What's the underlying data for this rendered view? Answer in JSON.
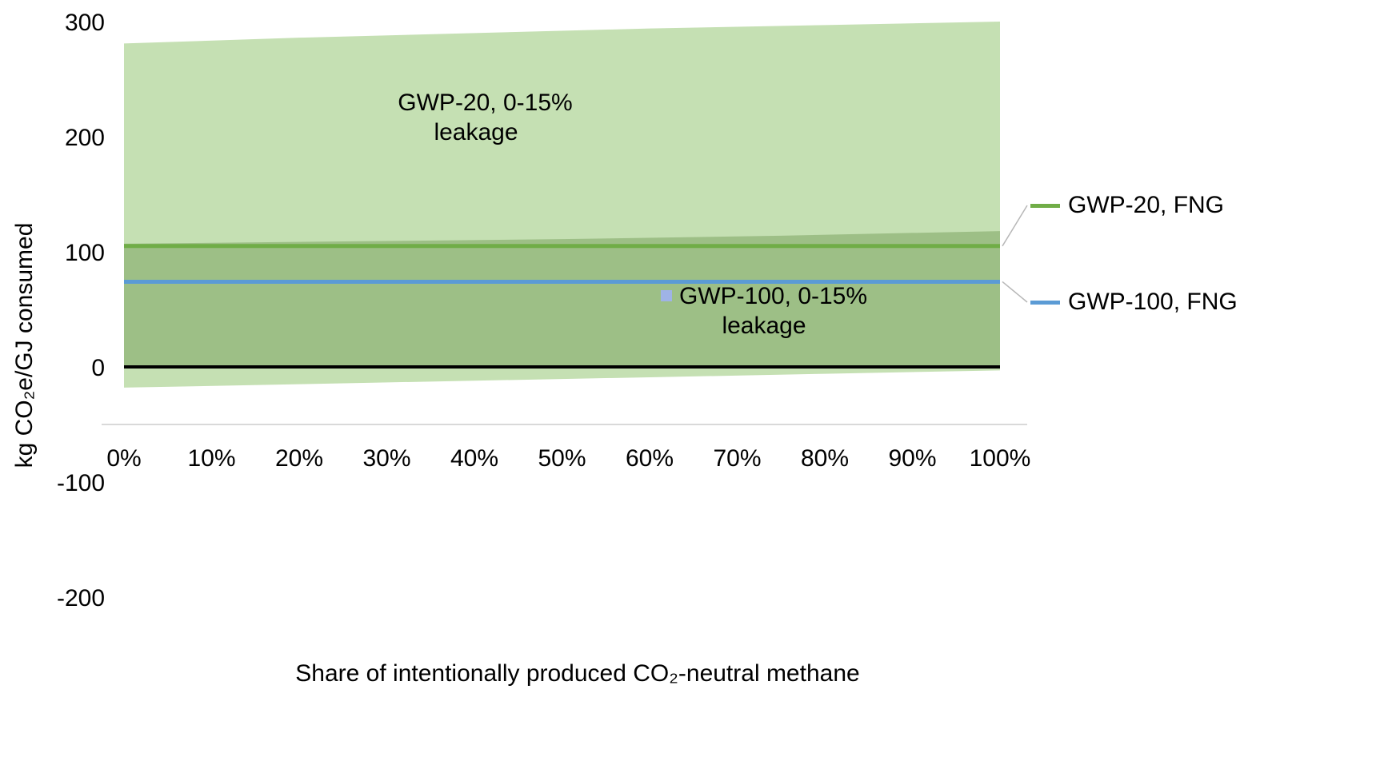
{
  "chart_data": {
    "type": "area",
    "title": "",
    "xlabel": "Share of intentionally produced CO₂-neutral methane",
    "ylabel": "kg CO₂e/GJ consumed",
    "ylim": [
      -200,
      300
    ],
    "xlim": [
      0,
      100
    ],
    "grid": "off",
    "legend_position": "right",
    "x_ticks": [
      {
        "value": 0,
        "label": "0%"
      },
      {
        "value": 10,
        "label": "10%"
      },
      {
        "value": 20,
        "label": "20%"
      },
      {
        "value": 30,
        "label": "30%"
      },
      {
        "value": 40,
        "label": "40%"
      },
      {
        "value": 50,
        "label": "50%"
      },
      {
        "value": 60,
        "label": "60%"
      },
      {
        "value": 70,
        "label": "70%"
      },
      {
        "value": 80,
        "label": "80%"
      },
      {
        "value": 90,
        "label": "90%"
      },
      {
        "value": 100,
        "label": "100%"
      }
    ],
    "y_ticks": [
      {
        "value": 300,
        "label": "300"
      },
      {
        "value": 200,
        "label": "200"
      },
      {
        "value": 100,
        "label": "100"
      },
      {
        "value": 0,
        "label": "0"
      },
      {
        "value": -100,
        "label": "-100"
      },
      {
        "value": -200,
        "label": "-200"
      }
    ],
    "bands": [
      {
        "name": "GWP-20, 0-15% leakage",
        "fill": "#c5e0b3",
        "label_marker_color": "#c5e0b3",
        "label_line1": "GWP-20, 0-15%",
        "label_line2": "leakage",
        "x": [
          0,
          20,
          40,
          60,
          80,
          100
        ],
        "upper": [
          281,
          286,
          290,
          294,
          297,
          300
        ],
        "lower": [
          -18,
          -15,
          -12,
          -9,
          -6,
          -3
        ]
      },
      {
        "name": "GWP-100, 0-15% leakage",
        "fill": "rgba(84,130,53,0.35)",
        "label_marker_color": "#9fb3e6",
        "label_line1": "GWP-100, 0-15%",
        "label_line2": "leakage",
        "x": [
          0,
          25,
          50,
          75,
          100
        ],
        "upper": [
          107,
          109,
          111,
          114,
          118
        ],
        "lower": [
          0,
          0,
          0,
          0,
          0
        ]
      }
    ],
    "lines": [
      {
        "name": "GWP-20, FNG",
        "color": "#70ad47",
        "value": 105,
        "width": 5
      },
      {
        "name": "GWP-100, FNG",
        "color": "#5b9bd5",
        "value": 74,
        "width": 5
      },
      {
        "name": "zero-baseline",
        "color": "#000000",
        "value": 0,
        "width": 4
      }
    ],
    "legend": [
      {
        "label": "GWP-20, FNG",
        "color": "#70ad47"
      },
      {
        "label": "GWP-100, FNG",
        "color": "#5b9bd5"
      }
    ],
    "style": {
      "axis_line_color": "#d9d9d9",
      "leader_line_color": "#b7b7b7",
      "text_color": "#000000"
    }
  }
}
